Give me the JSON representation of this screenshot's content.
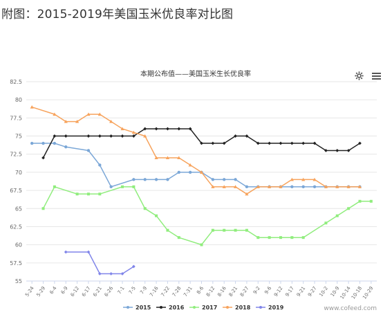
{
  "page": {
    "title": "附图：2015-2019年美国玉米优良率对比图"
  },
  "toolbar": {
    "settings_icon": "gear-icon",
    "menu_icon": "hamburger-menu-icon"
  },
  "watermark": "www.cofeed.com",
  "chart_data": {
    "type": "line",
    "title": "本期公布值——美国玉米生长优良率",
    "xlabel": "",
    "ylabel": "",
    "ylim": [
      55,
      82.5
    ],
    "yticks": [
      "55",
      "57.5",
      "60",
      "62.5",
      "65",
      "67.5",
      "70",
      "72.5",
      "75",
      "77.5",
      "80",
      "82.5"
    ],
    "categories": [
      "5-24",
      "5-29",
      "6-4",
      "6-9",
      "6-12",
      "6-17",
      "6-21",
      "6-26",
      "7-1",
      "7-5",
      "7-9",
      "7-16",
      "7-22",
      "7-28",
      "7-31",
      "8-6",
      "8-12",
      "8-16",
      "8-21",
      "8-27",
      "9-2",
      "9-6",
      "9-12",
      "9-17",
      "9-21",
      "9-27",
      "10-2",
      "10-9",
      "10-14",
      "10-18",
      "10-29"
    ],
    "grid": true,
    "legend": "bottom",
    "series": [
      {
        "name": "2015",
        "color": "#7ba7d7",
        "values": [
          74,
          74,
          74,
          73.5,
          null,
          73,
          71,
          68,
          null,
          69,
          69,
          69,
          69,
          70,
          70,
          70,
          69,
          69,
          69,
          68,
          68,
          68,
          68,
          68,
          68,
          68,
          68,
          68,
          68,
          68,
          null
        ]
      },
      {
        "name": "2016",
        "color": "#222222",
        "values": [
          null,
          72,
          75,
          75,
          null,
          75,
          75,
          75,
          75,
          75,
          76,
          76,
          76,
          76,
          76,
          74,
          74,
          74,
          75,
          75,
          74,
          74,
          74,
          74,
          74,
          74,
          73,
          73,
          73,
          74,
          null
        ]
      },
      {
        "name": "2017",
        "color": "#90ed7d",
        "values": [
          null,
          65,
          68,
          null,
          67,
          67,
          67,
          null,
          68,
          68,
          65,
          64,
          62,
          61,
          null,
          60,
          62,
          62,
          62,
          62,
          61,
          61,
          61,
          61,
          61,
          null,
          63,
          64,
          65,
          66,
          66
        ]
      },
      {
        "name": "2018",
        "color": "#f7a35c",
        "values": [
          79,
          null,
          78,
          77,
          77,
          78,
          78,
          77,
          76,
          75.5,
          75,
          72,
          72,
          72,
          71,
          70,
          68,
          68,
          68,
          67,
          68,
          68,
          68,
          69,
          69,
          69,
          68,
          68,
          68,
          68,
          null
        ]
      },
      {
        "name": "2019",
        "color": "#8085e9",
        "values": [
          null,
          null,
          null,
          59,
          null,
          59,
          56,
          56,
          56,
          57,
          null,
          null,
          null,
          null,
          null,
          null,
          null,
          null,
          null,
          null,
          null,
          null,
          null,
          null,
          null,
          null,
          null,
          null,
          null,
          null,
          null
        ]
      }
    ]
  }
}
